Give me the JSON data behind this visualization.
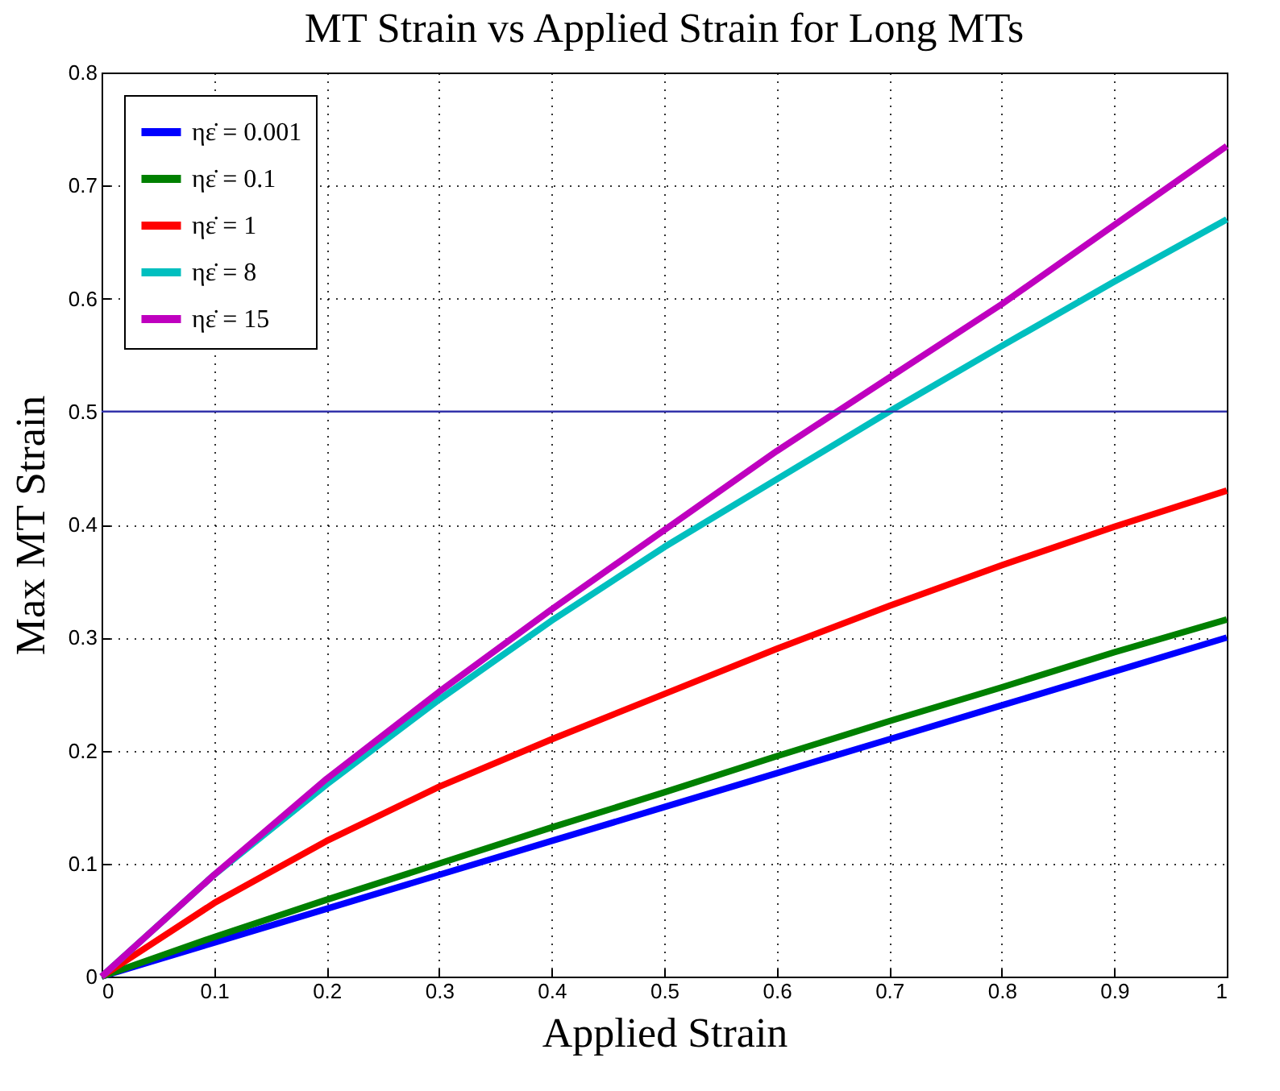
{
  "chart_data": {
    "type": "line",
    "title": "MT Strain vs Applied Strain for Long MTs",
    "xlabel": "Applied Strain",
    "ylabel": "Max MT Strain",
    "x": [
      0,
      0.1,
      0.2,
      0.3,
      0.4,
      0.5,
      0.6,
      0.7,
      0.8,
      0.9,
      1
    ],
    "series": [
      {
        "name": "ηε̇ = 0.001",
        "color": "#0000ff",
        "values": [
          0,
          0.03,
          0.06,
          0.09,
          0.12,
          0.15,
          0.18,
          0.21,
          0.24,
          0.27,
          0.3
        ]
      },
      {
        "name": "ηε̇ = 0.1",
        "color": "#008000",
        "values": [
          0,
          0.035,
          0.068,
          0.1,
          0.132,
          0.163,
          0.195,
          0.226,
          0.256,
          0.287,
          0.316
        ]
      },
      {
        "name": "ηε̇ = 1",
        "color": "#ff0000",
        "values": [
          0,
          0.065,
          0.12,
          0.168,
          0.21,
          0.25,
          0.29,
          0.328,
          0.364,
          0.398,
          0.43
        ]
      },
      {
        "name": "ηε̇ = 8",
        "color": "#00bfbf",
        "values": [
          0,
          0.09,
          0.17,
          0.245,
          0.315,
          0.38,
          0.44,
          0.5,
          0.558,
          0.615,
          0.67
        ]
      },
      {
        "name": "ηε̇ = 15",
        "color": "#bf00bf",
        "values": [
          0,
          0.09,
          0.175,
          0.252,
          0.325,
          0.395,
          0.465,
          0.53,
          0.595,
          0.665,
          0.735
        ]
      }
    ],
    "xlim": [
      0,
      1
    ],
    "xticks": [
      0,
      0.1,
      0.2,
      0.3,
      0.4,
      0.5,
      0.6,
      0.7,
      0.8,
      0.9,
      1
    ],
    "ylim": [
      0,
      0.8
    ],
    "yticks": [
      0,
      0.1,
      0.2,
      0.3,
      0.4,
      0.5,
      0.6,
      0.7,
      0.8
    ],
    "ref_lines": [
      {
        "axis": "y",
        "value": 0.5,
        "color": "#3333aa"
      }
    ],
    "grid": true,
    "legend": "top left",
    "line_style": "solid",
    "marker": "none"
  }
}
